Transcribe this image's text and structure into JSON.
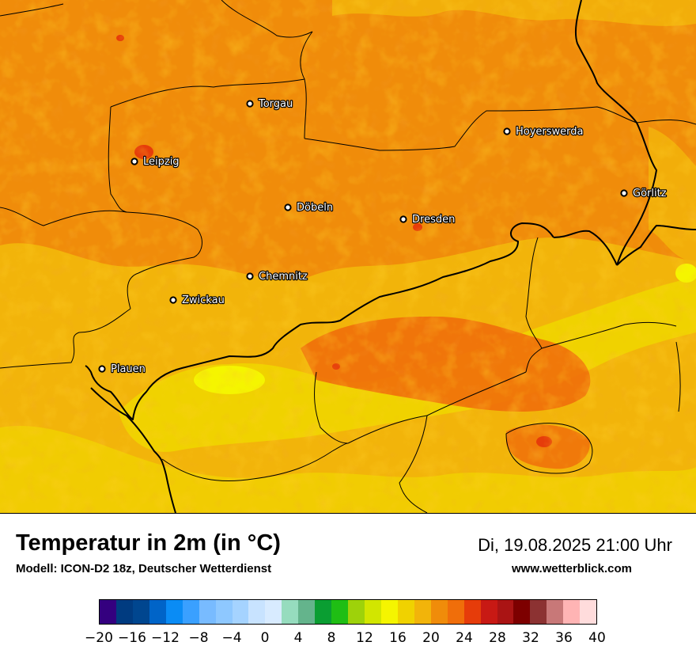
{
  "title": "Temperatur in 2m (in °C)",
  "model": "Modell: ICON-D2 18z, Deutscher Wetterdienst",
  "datetime": "Di, 19.08.2025 21:00 Uhr",
  "website": "www.wetterblick.com",
  "cities": [
    "Torgau",
    "Leipzig",
    "Hoyerswerda",
    "Döbeln",
    "Dresden",
    "Görlitz",
    "Chemnitz",
    "Zwickau",
    "Plauen"
  ],
  "legend": {
    "unit": "°C",
    "ticks": [
      "−20",
      "−16",
      "−12",
      "−8",
      "−4",
      "0",
      "4",
      "8",
      "12",
      "16",
      "20",
      "24",
      "28",
      "32",
      "36",
      "40"
    ],
    "colors": [
      "#34007f",
      "#003b80",
      "#00468f",
      "#0064c8",
      "#0a8cf5",
      "#3aa0ff",
      "#78bbff",
      "#8ec8ff",
      "#a5d3ff",
      "#c8e3ff",
      "#d8ebff",
      "#96dcbe",
      "#64b48c",
      "#0a9e32",
      "#1fbe14",
      "#9ed20a",
      "#d2e600",
      "#f5f500",
      "#f0d200",
      "#f2b40a",
      "#f08c0a",
      "#f06e0a",
      "#e63c0a",
      "#c81914",
      "#aa1414",
      "#7d0000",
      "#8c3232",
      "#c87878",
      "#ffb4b4",
      "#ffdcdc"
    ]
  }
}
